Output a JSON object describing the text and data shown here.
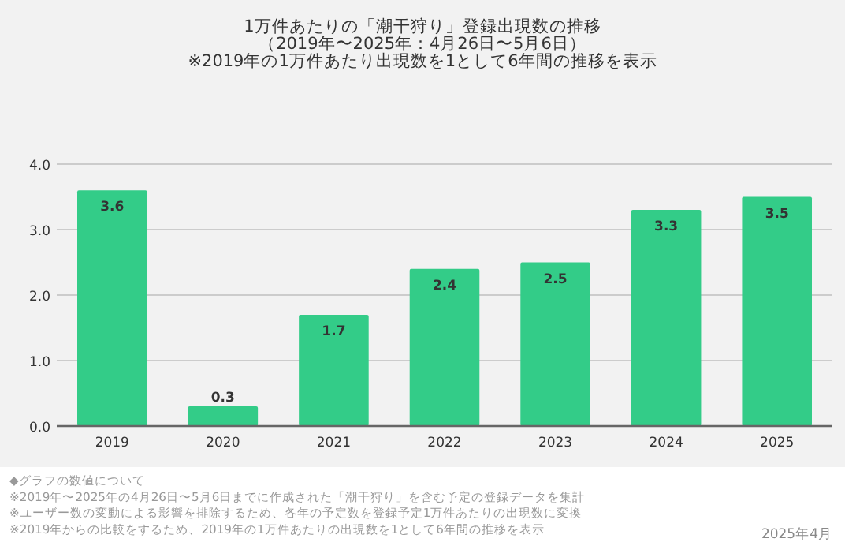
{
  "chart_data": {
    "type": "bar",
    "title": "1万件あたりの「潮干狩り」登録出現数の推移",
    "subtitle": "（2019年〜2025年：4月26日〜5月6日）\n※2019年の1万件あたり出現数を1として6年間の推移を表示",
    "categories": [
      "2019",
      "2020",
      "2021",
      "2022",
      "2023",
      "2024",
      "2025"
    ],
    "values": [
      3.6,
      0.3,
      1.7,
      2.4,
      2.5,
      3.3,
      3.5
    ],
    "color": "#33cc88",
    "data_labels": true,
    "grid": "y",
    "ylim": [
      0,
      4
    ],
    "yticks": [
      {
        "value": 0,
        "label": "0.0"
      },
      {
        "value": 1,
        "label": "1.0"
      },
      {
        "value": 2,
        "label": "2.0"
      },
      {
        "value": 3,
        "label": "3.0"
      },
      {
        "value": 4,
        "label": "4.0"
      }
    ],
    "annotations": [
      "◆グラフの数値について",
      "※2019年〜2025年の4月26日〜5月6日までに作成された「潮干狩り」を含む予定の登録データを集計",
      "※ユーザー数の変動による影響を排除するため、各年の予定数を登録予定1万件あたりの出現数に変換",
      "※2019年からの比較をするため、2019年の1万件あたりの出現数を1として6年間の推移を表示",
      "2025年4月"
    ]
  }
}
